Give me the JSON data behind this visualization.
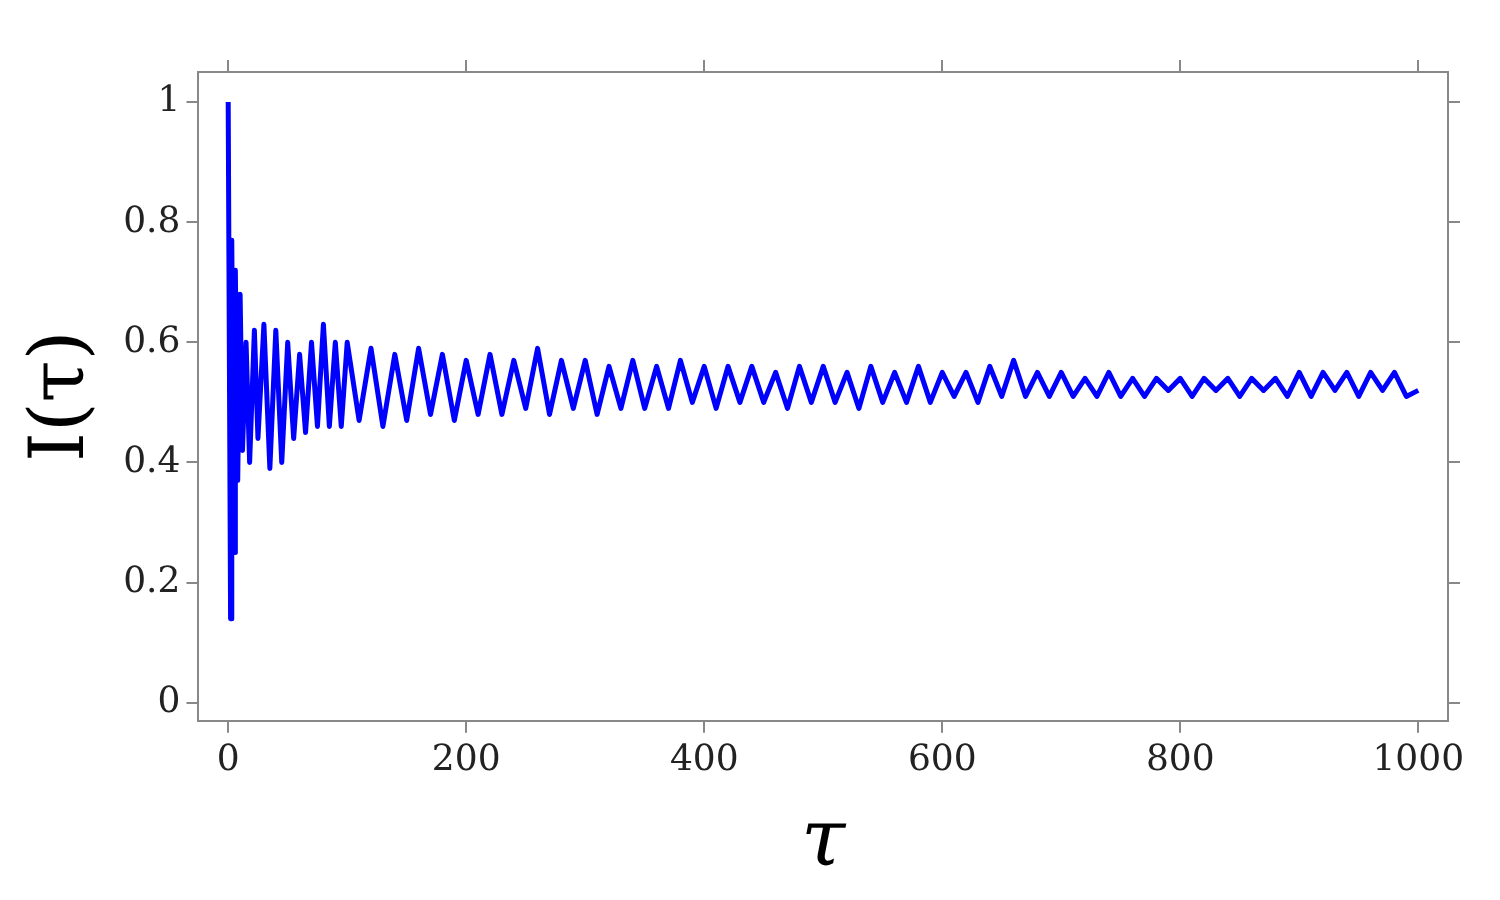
{
  "chart_data": {
    "type": "line",
    "xlabel": "τ",
    "ylabel": "I(τ)",
    "xlim": [
      -25,
      1025
    ],
    "ylim": [
      -0.03,
      1.05
    ],
    "xticks": [
      0,
      200,
      400,
      600,
      800,
      1000
    ],
    "yticks": [
      0,
      0.2,
      0.4,
      0.6,
      0.8,
      1
    ],
    "grid": false,
    "legend": false,
    "marker": "none",
    "line_style": "solid",
    "series": [
      {
        "color": "#0000ff",
        "x": [
          0,
          2,
          3,
          5,
          6,
          8,
          10,
          12,
          15,
          18,
          22,
          25,
          30,
          35,
          40,
          45,
          50,
          55,
          60,
          65,
          70,
          75,
          80,
          85,
          90,
          95,
          100,
          110,
          120,
          130,
          140,
          150,
          160,
          170,
          180,
          190,
          200,
          210,
          220,
          230,
          240,
          250,
          260,
          270,
          280,
          290,
          300,
          310,
          320,
          330,
          340,
          350,
          360,
          370,
          380,
          390,
          400,
          410,
          420,
          430,
          440,
          450,
          460,
          470,
          480,
          490,
          500,
          510,
          520,
          530,
          540,
          550,
          560,
          570,
          580,
          590,
          600,
          610,
          620,
          630,
          640,
          650,
          660,
          670,
          680,
          690,
          700,
          710,
          720,
          730,
          740,
          750,
          760,
          770,
          780,
          790,
          800,
          810,
          820,
          830,
          840,
          850,
          860,
          870,
          880,
          890,
          900,
          910,
          920,
          930,
          940,
          950,
          960,
          970,
          980,
          990,
          1000
        ],
        "values": [
          1,
          0.14,
          0.77,
          0.25,
          0.72,
          0.37,
          0.68,
          0.42,
          0.6,
          0.4,
          0.62,
          0.44,
          0.63,
          0.39,
          0.62,
          0.4,
          0.6,
          0.44,
          0.58,
          0.45,
          0.6,
          0.46,
          0.63,
          0.46,
          0.6,
          0.46,
          0.6,
          0.47,
          0.59,
          0.46,
          0.58,
          0.47,
          0.59,
          0.48,
          0.58,
          0.47,
          0.57,
          0.48,
          0.58,
          0.48,
          0.57,
          0.49,
          0.59,
          0.48,
          0.57,
          0.49,
          0.57,
          0.48,
          0.56,
          0.49,
          0.57,
          0.49,
          0.56,
          0.49,
          0.57,
          0.5,
          0.56,
          0.49,
          0.56,
          0.5,
          0.56,
          0.5,
          0.55,
          0.49,
          0.56,
          0.5,
          0.56,
          0.5,
          0.55,
          0.49,
          0.56,
          0.5,
          0.55,
          0.5,
          0.56,
          0.5,
          0.55,
          0.51,
          0.55,
          0.5,
          0.56,
          0.51,
          0.57,
          0.51,
          0.55,
          0.51,
          0.55,
          0.51,
          0.54,
          0.51,
          0.55,
          0.51,
          0.54,
          0.51,
          0.54,
          0.52,
          0.54,
          0.51,
          0.54,
          0.52,
          0.54,
          0.51,
          0.54,
          0.52,
          0.54,
          0.51,
          0.55,
          0.51,
          0.55,
          0.52,
          0.55,
          0.51,
          0.55,
          0.52,
          0.55,
          0.51,
          0.52
        ]
      }
    ]
  }
}
